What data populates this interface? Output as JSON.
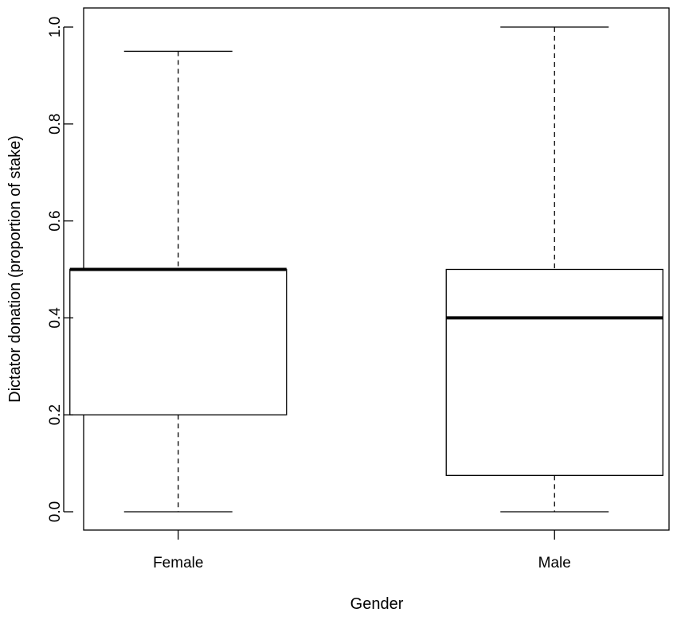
{
  "chart_data": {
    "type": "box",
    "xlabel": "Gender",
    "ylabel": "Dictator donation (proportion of stake)",
    "ylim": [
      0,
      1
    ],
    "y_ticks": [
      "0.0",
      "0.2",
      "0.4",
      "0.6",
      "0.8",
      "1.0"
    ],
    "y_tick_values": [
      0,
      0.2,
      0.4,
      0.6,
      0.8,
      1.0
    ],
    "categories": [
      "Female",
      "Male"
    ],
    "boxes": [
      {
        "category": "Female",
        "min": 0.0,
        "q1": 0.2,
        "median": 0.5,
        "q3": 0.5,
        "max": 0.95
      },
      {
        "category": "Male",
        "min": 0.0,
        "q1": 0.075,
        "median": 0.4,
        "q3": 0.5,
        "max": 1.0
      }
    ],
    "grid": false,
    "colors": {
      "box_fill": "#ffffff",
      "line": "#000000"
    }
  }
}
